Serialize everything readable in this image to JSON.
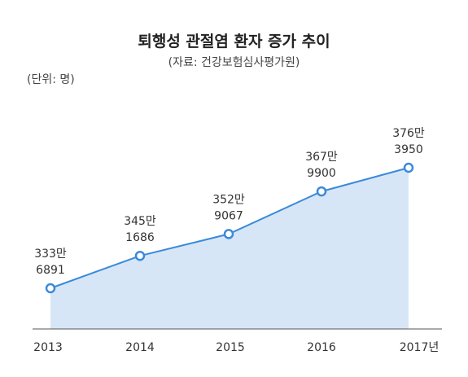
{
  "chart_data": {
    "type": "area",
    "title": "퇴행성 관절염 환자 증가 추이",
    "subtitle": "(자료: 건강보험심사평가원)",
    "unit_label": "(단위: 명)",
    "x_tick_labels": [
      "2013",
      "2014",
      "2015",
      "2016",
      "2017년"
    ],
    "x": [
      2013,
      2014,
      2015,
      2016,
      2017
    ],
    "values": [
      3336891,
      3451686,
      3529067,
      3679900,
      3763950
    ],
    "data_labels": [
      [
        "333만",
        "6891"
      ],
      [
        "345만",
        "1686"
      ],
      [
        "352만",
        "9067"
      ],
      [
        "367만",
        "9900"
      ],
      [
        "376만",
        "3950"
      ]
    ],
    "line_color": "#3b8ad9",
    "fill_color": "#d7e6f7",
    "grid": false
  }
}
